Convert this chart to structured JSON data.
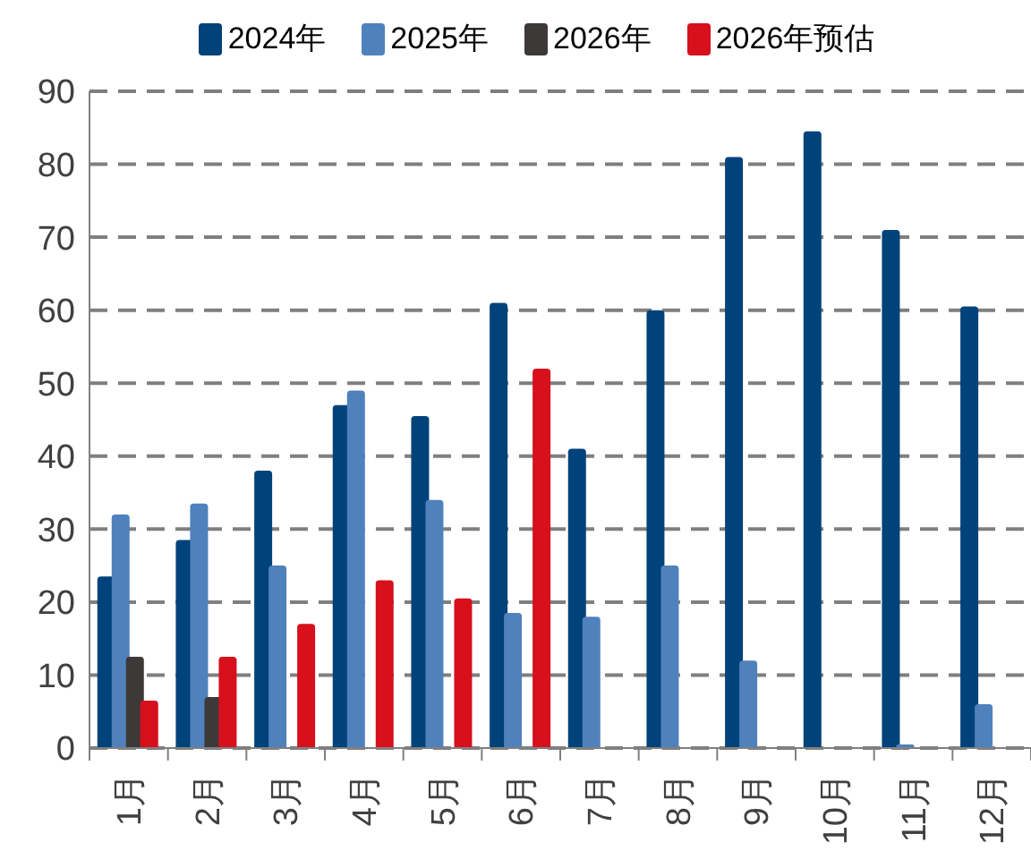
{
  "chart_data": {
    "type": "bar",
    "categories": [
      "1月",
      "2月",
      "3月",
      "4月",
      "5月",
      "6月",
      "7月",
      "8月",
      "9月",
      "10月",
      "11月",
      "12月"
    ],
    "series": [
      {
        "name": "2024年",
        "color": "#00427a",
        "values": [
          23.5,
          28.5,
          38,
          47,
          45.5,
          61,
          41,
          60,
          81,
          84.5,
          71,
          60.5
        ]
      },
      {
        "name": "2025年",
        "color": "#4f81bd",
        "values": [
          32,
          33.5,
          25,
          49,
          34,
          18.5,
          18,
          25,
          12,
          null,
          0.5,
          6
        ]
      },
      {
        "name": "2026年",
        "color": "#3d3939",
        "values": [
          12.5,
          7,
          null,
          null,
          null,
          null,
          null,
          null,
          null,
          null,
          null,
          null
        ]
      },
      {
        "name": "2026年预估",
        "color": "#d7101c",
        "values": [
          6.5,
          12.5,
          17,
          23,
          20.5,
          52,
          null,
          null,
          null,
          null,
          null,
          null
        ]
      }
    ],
    "ylim": [
      0,
      90
    ],
    "yticks": [
      0,
      10,
      20,
      30,
      40,
      50,
      60,
      70,
      80,
      90
    ],
    "grid": "y",
    "legend": "top"
  }
}
